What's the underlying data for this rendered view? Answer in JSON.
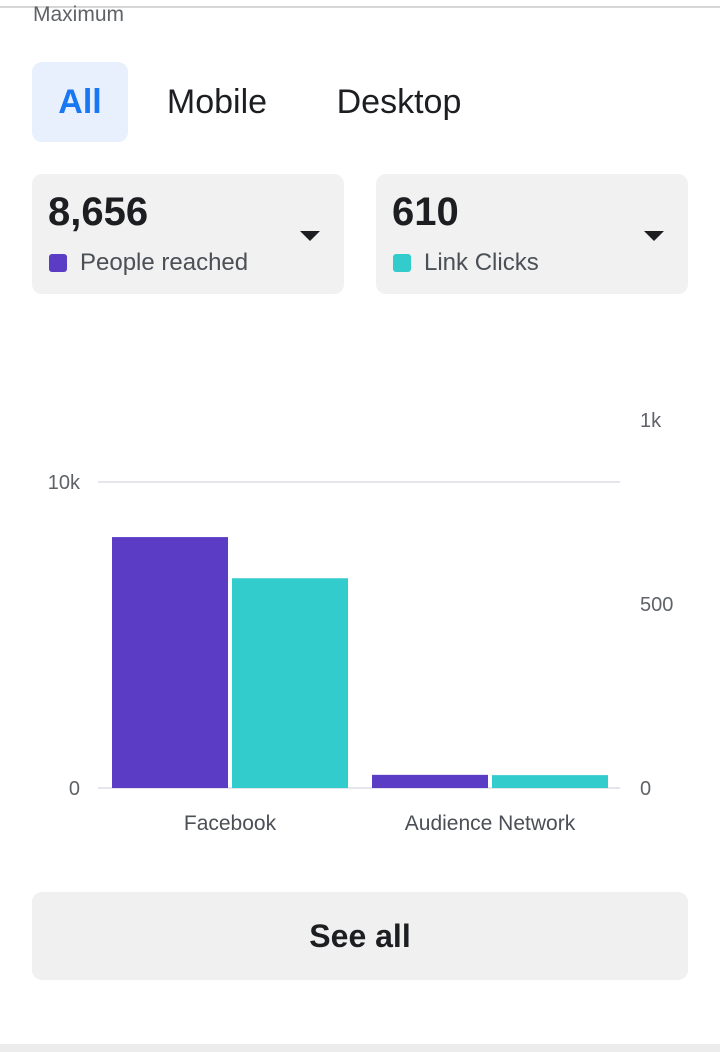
{
  "section_label": "Maximum",
  "tabs": [
    {
      "label": "All",
      "active": true
    },
    {
      "label": "Mobile",
      "active": false
    },
    {
      "label": "Desktop",
      "active": false
    }
  ],
  "metrics": [
    {
      "value": "8,656",
      "label": "People reached",
      "color": "#5b3cc4",
      "icon": "chevron-down-icon"
    },
    {
      "value": "610",
      "label": "Link Clicks",
      "color": "#33cccc",
      "icon": "chevron-down-icon"
    }
  ],
  "chart_data": {
    "type": "bar",
    "categories": [
      "Facebook",
      "Audience Network"
    ],
    "series": [
      {
        "name": "People reached",
        "axis": "left",
        "color": "#5b3cc4",
        "values": [
          8200,
          430
        ]
      },
      {
        "name": "Link Clicks",
        "axis": "right",
        "color": "#33cccc",
        "values": [
          570,
          35
        ]
      }
    ],
    "left_axis": {
      "ticks": [
        {
          "v": 0,
          "label": "0"
        },
        {
          "v": 10000,
          "label": "10k"
        }
      ],
      "range": [
        0,
        10000
      ]
    },
    "right_axis": {
      "ticks": [
        {
          "v": 0,
          "label": "0"
        },
        {
          "v": 500,
          "label": "500"
        },
        {
          "v": 1000,
          "label": "1k"
        }
      ],
      "range": [
        0,
        1000
      ]
    },
    "gridline_at": 10000,
    "legend": "none"
  },
  "see_all_label": "See all"
}
